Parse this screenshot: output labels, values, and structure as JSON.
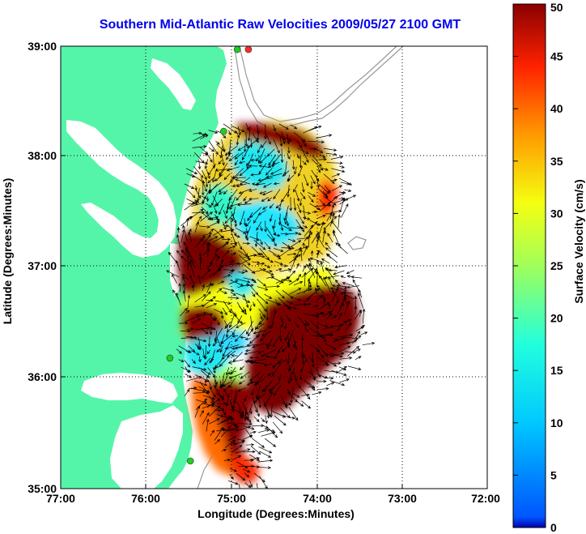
{
  "title": "Southern Mid-Atlantic Raw Velocities 2009/05/27 2100 GMT",
  "map": {
    "x_axis": {
      "label": "Longitude (Degrees:Minutes)",
      "ticks": [
        "77:00",
        "76:00",
        "75:00",
        "74:00",
        "73:00",
        "72:00"
      ],
      "range_deg_w": [
        77,
        72
      ]
    },
    "y_axis": {
      "label": "Latitude (Degrees:Minutes)",
      "ticks": [
        "35:00",
        "36:00",
        "37:00",
        "38:00",
        "39:00"
      ],
      "range_deg_n": [
        35,
        39
      ]
    },
    "grid": "dotted",
    "land_color": "#55f5a9",
    "sea_color": "#ffffff",
    "bathymetry_color": "#999999",
    "vector_color": "#000000",
    "station_markers": [
      {
        "lon": -74.8,
        "lat": 38.97,
        "color": "#ff2a2a"
      },
      {
        "lon": -74.93,
        "lat": 38.97,
        "color": "#22cc22"
      },
      {
        "lon": -75.09,
        "lat": 38.23,
        "color": "#22cc22"
      },
      {
        "lon": -75.72,
        "lat": 36.18,
        "color": "#22cc22"
      },
      {
        "lon": -75.48,
        "lat": 35.25,
        "color": "#22cc22"
      }
    ]
  },
  "colorbar": {
    "label": "Surface Velocity (cm/s)",
    "ticks": [
      "0",
      "5",
      "10",
      "15",
      "20",
      "25",
      "30",
      "35",
      "40",
      "45",
      "50"
    ],
    "range": [
      0,
      50
    ],
    "colormap": "jet"
  }
}
